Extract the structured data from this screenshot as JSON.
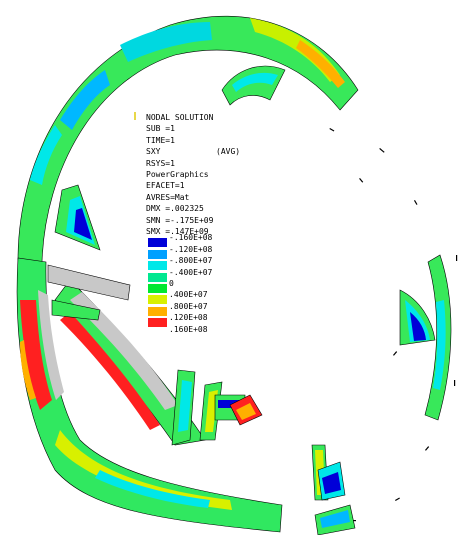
{
  "legend": {
    "title": "NODAL SOLUTION",
    "sub": "SUB =1",
    "time": "TIME=1",
    "component": "SXY",
    "avg": "(AVG)",
    "rsys": "RSYS=1",
    "graphics": "PowerGraphics",
    "efacet": "EFACET=1",
    "avres": "AVRES=Mat",
    "dmx": "DMX =.002325",
    "smn": "SMN =-.175E+09",
    "smx": "SMX =.147E+09",
    "contour_labels": [
      "-.160E+08",
      "-.120E+08",
      "-.800E+07",
      "-.400E+07",
      "0",
      ".400E+07",
      ".800E+07",
      ".120E+08",
      ".160E+08"
    ],
    "contour_colors": [
      "#0000d8",
      "#00a0ff",
      "#00e8e8",
      "#00e890",
      "#00e830",
      "#d8f000",
      "#ffb000",
      "#ff2020"
    ]
  }
}
